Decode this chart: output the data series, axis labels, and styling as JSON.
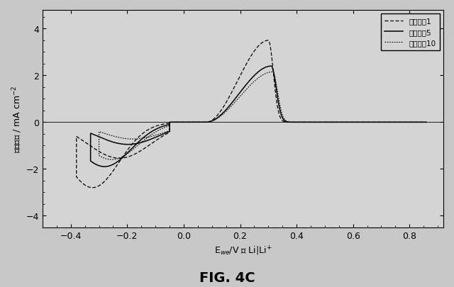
{
  "title": "FIG. 4C",
  "xlabel": "E$_{we}$/V 対 Li|Li$^{+}$",
  "ylabel": "電流密度 / mA cm$^{-2}$",
  "xlim": [
    -0.5,
    0.92
  ],
  "ylim": [
    -4.5,
    4.8
  ],
  "xticks": [
    -0.4,
    -0.2,
    0.0,
    0.2,
    0.4,
    0.6,
    0.8
  ],
  "yticks": [
    -4,
    -2,
    0,
    2,
    4
  ],
  "legend_labels": [
    "サイクル1",
    "サイクル5",
    "サイクル10"
  ],
  "fig_bg": "#c8c8c8",
  "plot_bg": "#d4d4d4"
}
